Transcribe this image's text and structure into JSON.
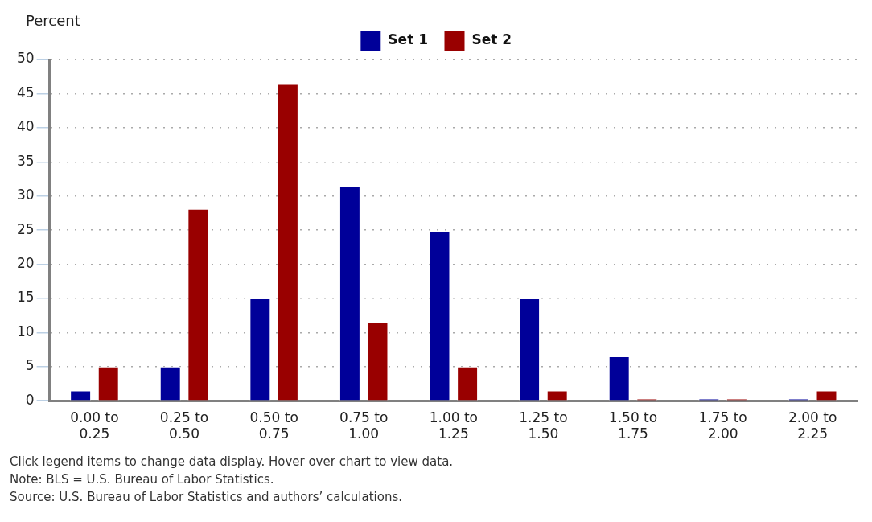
{
  "chart_data": {
    "type": "bar",
    "ylabel": "Percent",
    "categories": [
      "0.00 to\n0.25",
      "0.25 to\n0.50",
      "0.50 to\n0.75",
      "0.75 to\n1.00",
      "1.00 to\n1.25",
      "1.25 to\n1.50",
      "1.50 to\n1.75",
      "1.75 to\n2.00",
      "2.00 to\n2.25"
    ],
    "series": [
      {
        "name": "Set 1",
        "color": "#000099",
        "values": [
          1.5,
          5,
          15,
          31.4,
          24.8,
          15,
          6.5,
          0.3,
          0.3
        ]
      },
      {
        "name": "Set 2",
        "color": "#990000",
        "values": [
          5,
          28.1,
          46.4,
          11.5,
          5,
          1.5,
          0.3,
          0.3,
          1.5
        ]
      }
    ],
    "ylim": [
      0,
      50
    ],
    "yticks": [
      0,
      5,
      10,
      15,
      20,
      25,
      30,
      35,
      40,
      45,
      50
    ],
    "grid": "y",
    "legend": "top",
    "annotations": [
      "Click legend items to change data display. Hover over chart to view data.",
      "Note: BLS = U.S. Bureau of Labor Statistics.",
      "Source: U.S. Bureau of Labor Statistics and authors’ calculations."
    ]
  }
}
